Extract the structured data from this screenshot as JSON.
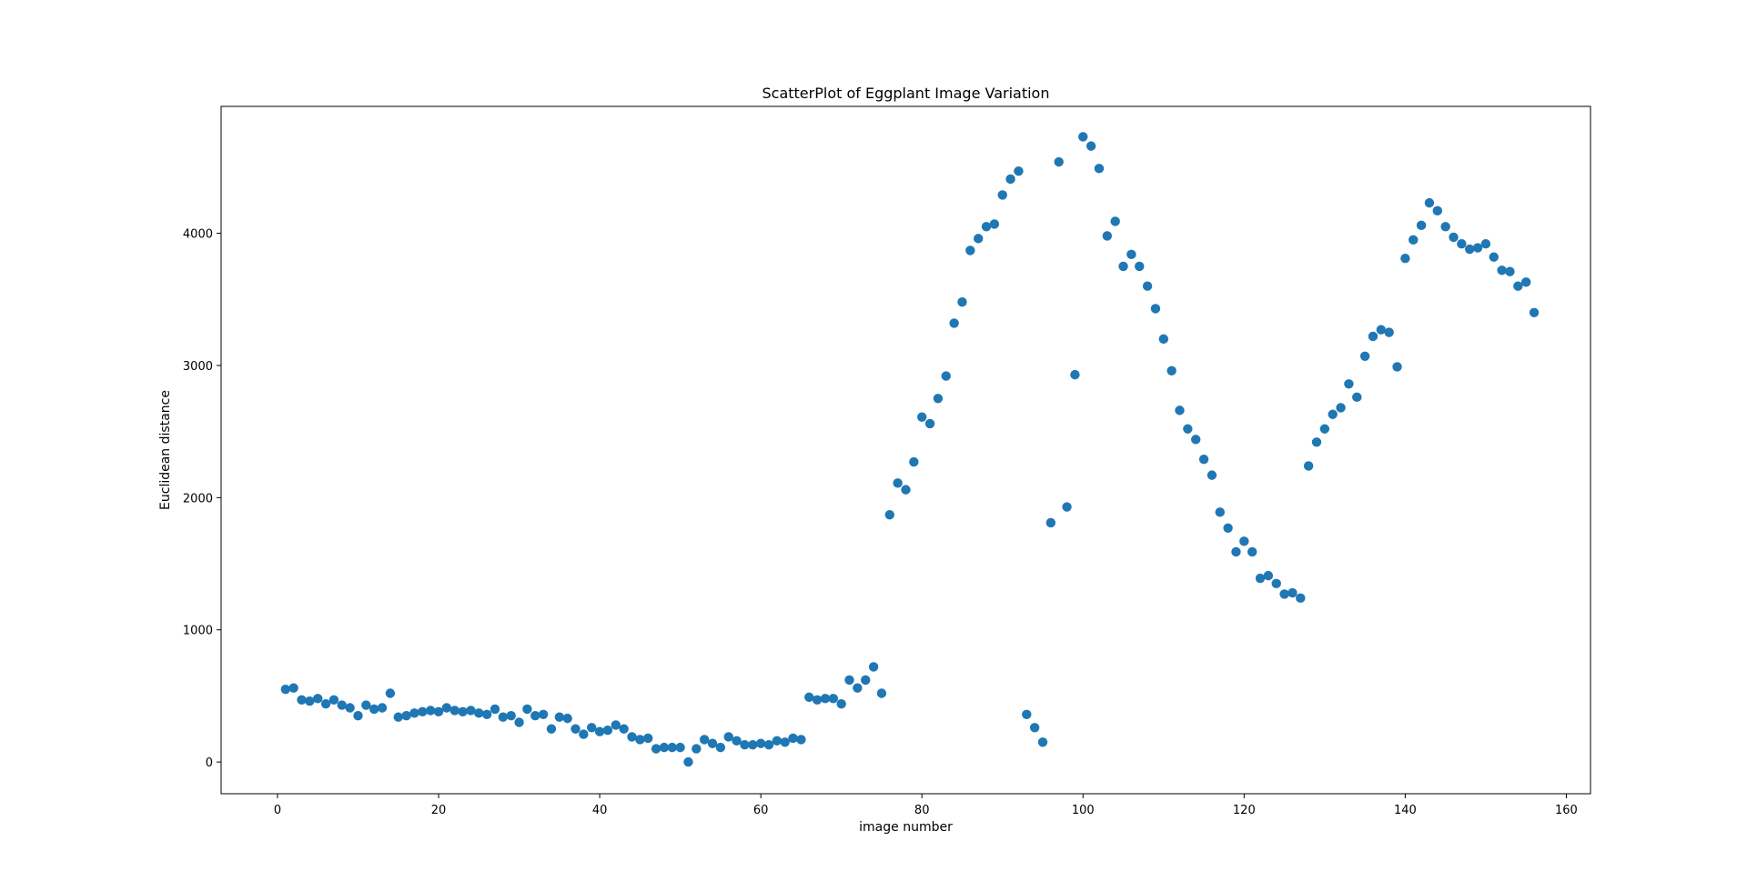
{
  "chart_data": {
    "type": "scatter",
    "title": "ScatterPlot of Eggplant Image Variation",
    "xlabel": "image number",
    "ylabel": "Euclidean distance",
    "xlim": [
      -7,
      163
    ],
    "ylim": [
      -240,
      4960
    ],
    "xticks": [
      0,
      20,
      40,
      60,
      80,
      100,
      120,
      140,
      160
    ],
    "yticks": [
      0,
      1000,
      2000,
      3000,
      4000
    ],
    "grid": false,
    "legend": "none",
    "marker_color": "#1f77b4",
    "series": [
      {
        "x": [
          1,
          2,
          3,
          4,
          5,
          6,
          7,
          8,
          9,
          10,
          11,
          12,
          13,
          14,
          15,
          16,
          17,
          18,
          19,
          20,
          21,
          22,
          23,
          24,
          25,
          26,
          27,
          28,
          29,
          30,
          31,
          32,
          33,
          34,
          35,
          36,
          37,
          38,
          39,
          40,
          41,
          42,
          43,
          44,
          45,
          46,
          47,
          48,
          49,
          50,
          51,
          52,
          53,
          54,
          55,
          56,
          57,
          58,
          59,
          60,
          61,
          62,
          63,
          64,
          65,
          66,
          67,
          68,
          69,
          70,
          71,
          72,
          73,
          74,
          75,
          76,
          77,
          78,
          79,
          80,
          81,
          82,
          83,
          84,
          85,
          86,
          87,
          88,
          89,
          90,
          91,
          92,
          93,
          94,
          95,
          96,
          97,
          98,
          99,
          100,
          101,
          102,
          103,
          104,
          105,
          106,
          107,
          108,
          109,
          110,
          111,
          112,
          113,
          114,
          115,
          116,
          117,
          118,
          119,
          120,
          121,
          122,
          123,
          124,
          125,
          126,
          127,
          128,
          129,
          130,
          131,
          132,
          133,
          134,
          135,
          136,
          137,
          138,
          139,
          140,
          141,
          142,
          143,
          144,
          145,
          146,
          147,
          148,
          149,
          150,
          151,
          152,
          153,
          154,
          155,
          156
        ],
        "y": [
          550,
          560,
          470,
          460,
          480,
          440,
          470,
          430,
          410,
          350,
          430,
          400,
          410,
          520,
          340,
          350,
          370,
          380,
          390,
          380,
          410,
          390,
          380,
          390,
          370,
          360,
          400,
          340,
          350,
          300,
          400,
          350,
          360,
          250,
          340,
          330,
          250,
          210,
          260,
          230,
          240,
          280,
          250,
          190,
          170,
          180,
          100,
          110,
          110,
          110,
          0,
          100,
          170,
          140,
          110,
          190,
          160,
          130,
          130,
          140,
          130,
          160,
          150,
          180,
          170,
          490,
          470,
          480,
          480,
          440,
          620,
          560,
          620,
          720,
          520,
          1870,
          2110,
          2060,
          2270,
          2610,
          2560,
          2750,
          2920,
          3320,
          3480,
          3870,
          3960,
          4050,
          4070,
          4290,
          4410,
          4470,
          360,
          260,
          150,
          1810,
          4540,
          1930,
          2930,
          4730,
          4660,
          4490,
          3980,
          4090,
          3750,
          3840,
          3750,
          3600,
          3430,
          3200,
          2960,
          2660,
          2520,
          2440,
          2290,
          2170,
          1890,
          1770,
          1590,
          1670,
          1590,
          1390,
          1410,
          1350,
          1270,
          1280,
          1240,
          2240,
          2420,
          2520,
          2630,
          2680,
          2860,
          2760,
          3070,
          3220,
          3270,
          3250,
          2990,
          3810,
          3950,
          4060,
          4230,
          4170,
          4050,
          3970,
          3920,
          3880,
          3890,
          3920,
          3820,
          3720,
          3710,
          3600,
          3630,
          3400
        ]
      }
    ]
  }
}
